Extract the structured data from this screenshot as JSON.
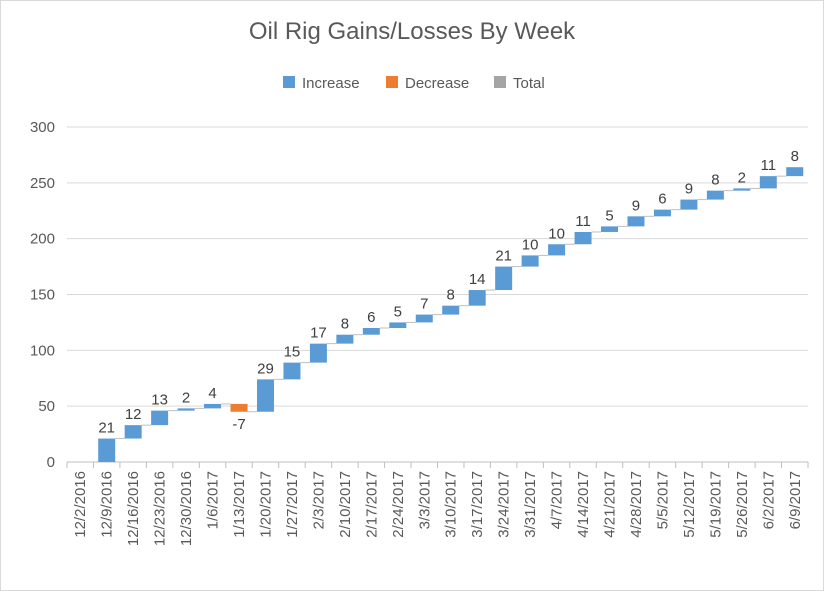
{
  "chart_data": {
    "type": "bar",
    "subtype": "waterfall",
    "title": "Oil Rig Gains/Losses  By Week",
    "xlabel": "",
    "ylabel": "",
    "ylim": [
      0,
      300
    ],
    "yticks": [
      0,
      50,
      100,
      150,
      200,
      250,
      300
    ],
    "grid": true,
    "legend_position": "top",
    "legend": [
      {
        "name": "Increase",
        "color": "#5b9bd5"
      },
      {
        "name": "Decrease",
        "color": "#ed7d31"
      },
      {
        "name": "Total",
        "color": "#a5a5a5"
      }
    ],
    "categories": [
      "12/2/2016",
      "12/9/2016",
      "12/16/2016",
      "12/23/2016",
      "12/30/2016",
      "1/6/2017",
      "1/13/2017",
      "1/20/2017",
      "1/27/2017",
      "2/3/2017",
      "2/10/2017",
      "2/17/2017",
      "2/24/2017",
      "3/3/2017",
      "3/10/2017",
      "3/17/2017",
      "3/24/2017",
      "3/31/2017",
      "4/7/2017",
      "4/14/2017",
      "4/21/2017",
      "4/28/2017",
      "5/5/2017",
      "5/12/2017",
      "5/19/2017",
      "5/26/2017",
      "6/2/2017",
      "6/9/2017"
    ],
    "values": [
      null,
      21,
      12,
      13,
      2,
      4,
      -7,
      29,
      15,
      17,
      8,
      6,
      5,
      7,
      8,
      14,
      21,
      10,
      10,
      11,
      5,
      9,
      6,
      9,
      8,
      2,
      11,
      8
    ]
  }
}
